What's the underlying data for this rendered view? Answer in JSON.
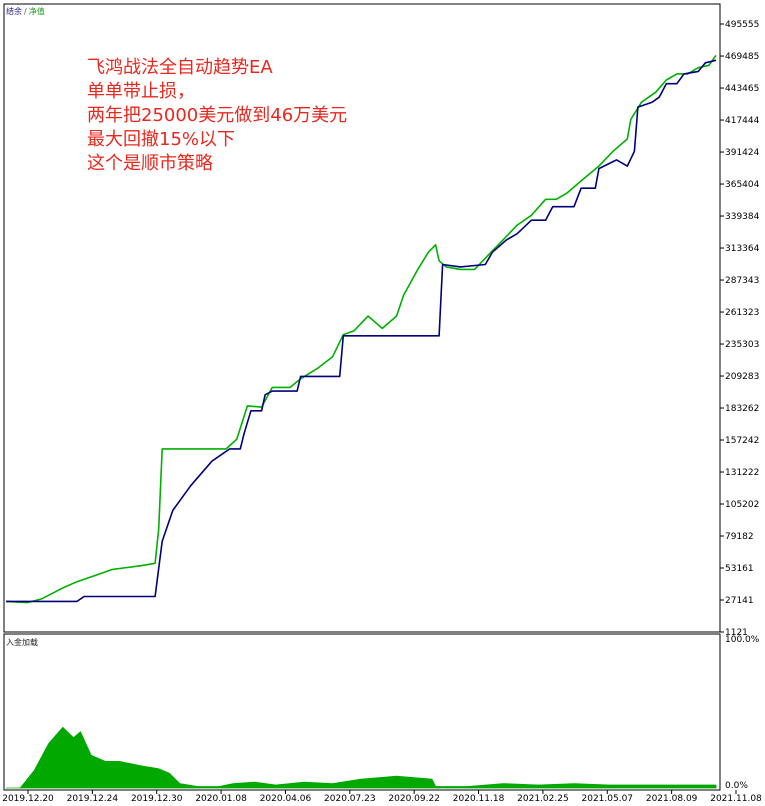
{
  "legend": {
    "balance": "结余",
    "separator": "/",
    "equity": "净值"
  },
  "annotation": [
    "飞鸿战法全自动趋势EA",
    "单单带止损，",
    "两年把25000美元做到46万美元",
    "最大回撤15%以下",
    "这个是顺市策略"
  ],
  "sub_chart_title": "入金加载",
  "colors": {
    "balance": "#00007f",
    "equity": "#00b000",
    "load": "#00a800",
    "annotation": "#e8281e",
    "axis": "#000000"
  },
  "chart_data": [
    {
      "type": "line",
      "title": "",
      "x_tick_labels": [
        "2019.12.20",
        "2019.12.24",
        "2019.12.30",
        "2020.01.08",
        "2020.04.06",
        "2020.07.23",
        "2020.09.22",
        "2020.11.18",
        "2021.02.25",
        "2021.05.07",
        "2021.08.09",
        "2021.11.08"
      ],
      "y_tick_labels": [
        "495555",
        "469485",
        "443465",
        "417444",
        "391424",
        "365404",
        "339384",
        "313364",
        "287343",
        "261323",
        "235303",
        "209283",
        "183262",
        "157242",
        "131222",
        "105202",
        "79182",
        "53161",
        "27141",
        "1121"
      ],
      "ylim": [
        1121,
        495555
      ],
      "series": [
        {
          "name": "结余",
          "color": "#00007f",
          "points": [
            [
              0,
              26000
            ],
            [
              0.1,
              26000
            ],
            [
              0.11,
              30000
            ],
            [
              0.21,
              30000
            ],
            [
              0.22,
              75000
            ],
            [
              0.235,
              100000
            ],
            [
              0.26,
              120000
            ],
            [
              0.29,
              140000
            ],
            [
              0.315,
              150000
            ],
            [
              0.33,
              150000
            ],
            [
              0.335,
              162000
            ],
            [
              0.345,
              181000
            ],
            [
              0.36,
              181000
            ],
            [
              0.365,
              194000
            ],
            [
              0.375,
              197000
            ],
            [
              0.41,
              197000
            ],
            [
              0.415,
              209000
            ],
            [
              0.47,
              209000
            ],
            [
              0.475,
              242000
            ],
            [
              0.61,
              242000
            ],
            [
              0.615,
              300000
            ],
            [
              0.64,
              298000
            ],
            [
              0.675,
              300000
            ],
            [
              0.685,
              310000
            ],
            [
              0.705,
              320000
            ],
            [
              0.72,
              325000
            ],
            [
              0.74,
              336000
            ],
            [
              0.76,
              336000
            ],
            [
              0.77,
              347000
            ],
            [
              0.8,
              347000
            ],
            [
              0.81,
              362000
            ],
            [
              0.83,
              362000
            ],
            [
              0.835,
              378000
            ],
            [
              0.86,
              385000
            ],
            [
              0.875,
              380000
            ],
            [
              0.885,
              392000
            ],
            [
              0.89,
              428000
            ],
            [
              0.91,
              432000
            ],
            [
              0.92,
              436000
            ],
            [
              0.93,
              447000
            ],
            [
              0.945,
              447000
            ],
            [
              0.955,
              455000
            ],
            [
              0.975,
              457000
            ],
            [
              0.985,
              464000
            ],
            [
              1.0,
              466000
            ]
          ]
        },
        {
          "name": "净值",
          "color": "#00b000",
          "points": [
            [
              0,
              26000
            ],
            [
              0.03,
              25000
            ],
            [
              0.05,
              28000
            ],
            [
              0.08,
              37000
            ],
            [
              0.1,
              42000
            ],
            [
              0.13,
              48000
            ],
            [
              0.15,
              52000
            ],
            [
              0.19,
              55000
            ],
            [
              0.21,
              57000
            ],
            [
              0.215,
              85000
            ],
            [
              0.22,
              150000
            ],
            [
              0.25,
              150000
            ],
            [
              0.29,
              150000
            ],
            [
              0.31,
              150000
            ],
            [
              0.325,
              158000
            ],
            [
              0.34,
              185000
            ],
            [
              0.36,
              184000
            ],
            [
              0.375,
              200000
            ],
            [
              0.4,
              200000
            ],
            [
              0.415,
              207000
            ],
            [
              0.44,
              216000
            ],
            [
              0.46,
              225000
            ],
            [
              0.475,
              243000
            ],
            [
              0.49,
              246000
            ],
            [
              0.51,
              258000
            ],
            [
              0.53,
              248000
            ],
            [
              0.55,
              258000
            ],
            [
              0.56,
              275000
            ],
            [
              0.58,
              296000
            ],
            [
              0.595,
              310000
            ],
            [
              0.605,
              316000
            ],
            [
              0.61,
              303000
            ],
            [
              0.62,
              298000
            ],
            [
              0.64,
              296000
            ],
            [
              0.66,
              296000
            ],
            [
              0.68,
              308000
            ],
            [
              0.7,
              320000
            ],
            [
              0.72,
              332000
            ],
            [
              0.74,
              340000
            ],
            [
              0.76,
              353000
            ],
            [
              0.775,
              353000
            ],
            [
              0.79,
              358000
            ],
            [
              0.81,
              368000
            ],
            [
              0.835,
              380000
            ],
            [
              0.855,
              392000
            ],
            [
              0.875,
              402000
            ],
            [
              0.88,
              418000
            ],
            [
              0.895,
              432000
            ],
            [
              0.915,
              440000
            ],
            [
              0.93,
              450000
            ],
            [
              0.945,
              455000
            ],
            [
              0.96,
              455000
            ],
            [
              0.975,
              460000
            ],
            [
              0.99,
              462000
            ],
            [
              1.0,
              470000
            ]
          ]
        }
      ]
    },
    {
      "type": "area",
      "title": "入金加载",
      "y_tick_labels": [
        "100.0%",
        "0.0%"
      ],
      "ylim": [
        0,
        100
      ],
      "series": [
        {
          "name": "入金加载",
          "color": "#00a800",
          "points": [
            [
              0,
              0
            ],
            [
              0.02,
              0
            ],
            [
              0.04,
              12
            ],
            [
              0.06,
              30
            ],
            [
              0.08,
              41
            ],
            [
              0.095,
              34
            ],
            [
              0.105,
              38
            ],
            [
              0.12,
              22
            ],
            [
              0.14,
              18
            ],
            [
              0.16,
              18
            ],
            [
              0.19,
              15
            ],
            [
              0.215,
              13
            ],
            [
              0.23,
              10
            ],
            [
              0.245,
              3
            ],
            [
              0.27,
              1
            ],
            [
              0.3,
              1
            ],
            [
              0.32,
              3
            ],
            [
              0.35,
              4
            ],
            [
              0.38,
              2
            ],
            [
              0.42,
              4
            ],
            [
              0.46,
              3
            ],
            [
              0.5,
              6
            ],
            [
              0.55,
              8
            ],
            [
              0.6,
              6
            ],
            [
              0.605,
              1
            ],
            [
              0.65,
              1
            ],
            [
              0.7,
              3
            ],
            [
              0.75,
              2
            ],
            [
              0.8,
              3
            ],
            [
              0.85,
              2
            ],
            [
              0.9,
              2
            ],
            [
              0.95,
              2
            ],
            [
              1.0,
              2
            ]
          ]
        }
      ]
    }
  ]
}
